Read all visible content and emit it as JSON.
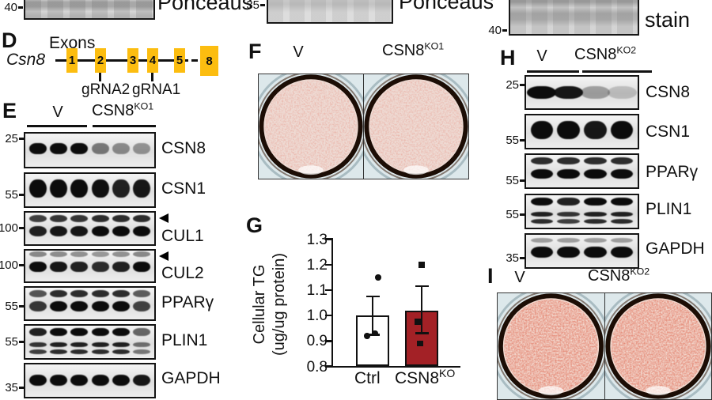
{
  "figure": {
    "top_row": {
      "left_marker": "40",
      "left_label": "Ponceaus",
      "middle_marker": "35",
      "middle_label": "Ponceaus",
      "right_marker": "40",
      "right_label": "stain"
    },
    "panel_d": {
      "letter": "D",
      "title": "Exons",
      "gene": "Csn8",
      "exons": [
        "1",
        "2",
        "3",
        "4",
        "5",
        "8"
      ],
      "grna_labels": [
        "gRNA2",
        "gRNA1"
      ]
    },
    "panel_e": {
      "letter": "E",
      "group1": "V",
      "group2_base": "CSN8",
      "group2_sup": "KO1",
      "rows": [
        {
          "mw": "25",
          "label": "CSN8",
          "type": "single",
          "lanes": [
            1,
            1,
            1,
            0.5,
            0.42,
            0.38
          ],
          "mwC": 0.2,
          "labelC": 0.46
        },
        {
          "mw": "55",
          "label": "CSN1",
          "type": "thick",
          "lanes": [
            1,
            1,
            1,
            0.98,
            0.9,
            0.95
          ],
          "mwC": 0.64,
          "labelC": 0.47
        },
        {
          "mw": "100",
          "label": "CUL1",
          "type": "doublet",
          "lanes": [
            0.9,
            0.95,
            0.95,
            1,
            1,
            1
          ],
          "arrow": true,
          "mwC": 0.5,
          "labelC": 0.73
        },
        {
          "mw": "100",
          "label": "CUL2",
          "type": "faint_upper",
          "lanes": [
            1,
            0.95,
            0.9,
            0.85,
            0.9,
            1
          ],
          "arrow": true,
          "mwC": 0.49,
          "labelC": 0.72
        },
        {
          "mw": "55",
          "label": "PPARγ",
          "type": "doublet",
          "lanes": [
            0.8,
            1,
            1,
            1,
            1,
            0.75
          ],
          "mwC": 0.59,
          "labelC": 0.48
        },
        {
          "mw": "55",
          "label": "PLIN1",
          "type": "triple",
          "lanes": [
            0.9,
            1,
            1,
            1,
            1,
            0.6
          ],
          "mwC": 0.51,
          "labelC": 0.47
        },
        {
          "mw": "35",
          "label": "GAPDH",
          "type": "single_low",
          "lanes": [
            1,
            1,
            1,
            1,
            1,
            0.95
          ],
          "mwC": 0.71,
          "labelC": 0.44
        }
      ]
    },
    "panel_f": {
      "letter": "F",
      "col1": "V",
      "col2_base": "CSN8",
      "col2_sup": "KO1"
    },
    "panel_g": {
      "letter": "G"
    },
    "panel_h": {
      "letter": "H",
      "group1": "V",
      "group2_base": "CSN8",
      "group2_sup": "KO2",
      "rows": [
        {
          "mw": "25",
          "label": "CSN8",
          "type": "smear",
          "lanes": [
            1,
            0.95,
            0.32,
            0.18
          ],
          "mwC": 0.3,
          "labelC": 0.5
        },
        {
          "mw": "55",
          "label": "CSN1",
          "type": "thick",
          "lanes": [
            1,
            1,
            0.95,
            1
          ],
          "mwC": 0.75,
          "labelC": 0.5
        },
        {
          "mw": "55",
          "label": "PPARγ",
          "type": "doublet",
          "lanes": [
            1,
            1,
            1,
            1
          ],
          "mwC": 0.78,
          "labelC": 0.53
        },
        {
          "mw": "55",
          "label": "PLIN1",
          "type": "triple",
          "lanes": [
            1,
            0.9,
            1,
            1
          ],
          "mwC": 0.6,
          "labelC": 0.44
        },
        {
          "mw": "35",
          "label": "GAPDH",
          "type": "gapdh_h",
          "lanes": [
            1,
            1,
            1,
            1
          ],
          "mwC": 0.71,
          "labelC": 0.44
        }
      ]
    },
    "panel_i": {
      "letter": "I",
      "col1": "V",
      "col2_base": "CSN8",
      "col2_sup": "KO2"
    }
  },
  "chart_data": {
    "type": "bar",
    "categories": [
      "Ctrl",
      "CSN8"
    ],
    "category_sups": [
      "",
      "KO"
    ],
    "values": [
      1.0,
      1.02
    ],
    "error_low": [
      0.925,
      0.93
    ],
    "error_high": [
      1.075,
      1.115
    ],
    "scatter_points": [
      [
        1.15,
        0.92,
        0.93
      ],
      [
        1.2,
        0.975,
        0.89
      ]
    ],
    "point_shapes": [
      "circle",
      "square"
    ],
    "bar_colors": [
      "#ffffff",
      "#a32126"
    ],
    "ylabel_lines": [
      "Cellular TG",
      "(ug/ug protein)"
    ],
    "yticks": [
      "0.8",
      "0.9",
      "1.0",
      "1.1",
      "1.2",
      "1.3"
    ],
    "ylim": [
      0.8,
      1.3
    ],
    "grid": false,
    "legend": false,
    "title": ""
  },
  "colors": {
    "exon_fill": "#fcbd10",
    "ko_bar_fill": "#a32126",
    "dish_ring": "#1c0d05"
  }
}
